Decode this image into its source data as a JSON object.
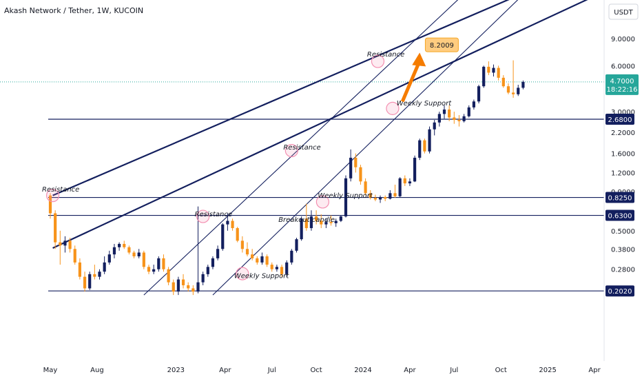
{
  "header": {
    "title": "Akash Network / Tether, 1W, KUCOIN",
    "currency": "USDT"
  },
  "price_badge": {
    "price": "4.7000",
    "countdown": "18:22:16",
    "color": "#26a69a"
  },
  "target_badge": {
    "label": "8.2009",
    "color": "#ffcc80"
  },
  "colors": {
    "up": "#131f5e",
    "down": "#f7931a",
    "channel": "#131f5e",
    "arrow": "#f57c00",
    "circle": "#f48fb1"
  },
  "chart_data": {
    "type": "candlestick",
    "title": "Akash Network / Tether, 1W, KUCOIN",
    "y_scale": "log",
    "y_ticks": [
      "9.0000",
      "6.0000",
      "3.0000",
      "2.2000",
      "1.6000",
      "1.2000",
      "0.9000",
      "0.5000",
      "0.3800",
      "0.2800"
    ],
    "x_ticks": [
      "May",
      "Aug",
      "2023",
      "Apr",
      "Jul",
      "Oct",
      "2024",
      "Apr",
      "Jul",
      "Oct",
      "2025",
      "Apr"
    ],
    "levels": [
      {
        "label": "2.6800",
        "value": 2.68
      },
      {
        "label": "0.8250",
        "value": 0.825
      },
      {
        "label": "0.6300",
        "value": 0.63
      },
      {
        "label": "0.2020",
        "value": 0.202
      }
    ],
    "annotations": [
      {
        "text": "Resistance",
        "week": 0,
        "value": 0.9
      },
      {
        "text": "Resistance",
        "week": 31,
        "value": 0.62
      },
      {
        "text": "Weekly Support",
        "week": 39,
        "value": 0.245
      },
      {
        "text": "Resistance",
        "week": 49,
        "value": 1.7
      },
      {
        "text": "Breakout candle",
        "week": 48,
        "value": 0.57
      },
      {
        "text": "Weekly Support",
        "week": 56,
        "value": 0.82
      },
      {
        "text": "Resistance",
        "week": 66,
        "value": 6.9
      },
      {
        "text": "Weekly Support",
        "week": 72,
        "value": 3.3
      }
    ],
    "circles": [
      {
        "week": 0.5,
        "value": 0.85
      },
      {
        "week": 31,
        "value": 0.62
      },
      {
        "week": 39,
        "value": 0.262
      },
      {
        "week": 49,
        "value": 1.67
      },
      {
        "week": 55.3,
        "value": 0.772
      },
      {
        "week": 66.5,
        "value": 6.4
      },
      {
        "week": 69.5,
        "value": 3.15
      }
    ],
    "target": {
      "value": 8.2009,
      "week": 75
    },
    "candles": [
      {
        "o": 0.85,
        "h": 0.88,
        "l": 0.6,
        "c": 0.65
      },
      {
        "o": 0.65,
        "h": 0.68,
        "l": 0.38,
        "c": 0.42
      },
      {
        "o": 0.42,
        "h": 0.5,
        "l": 0.3,
        "c": 0.4
      },
      {
        "o": 0.4,
        "h": 0.46,
        "l": 0.36,
        "c": 0.43
      },
      {
        "o": 0.43,
        "h": 0.45,
        "l": 0.36,
        "c": 0.38
      },
      {
        "o": 0.38,
        "h": 0.4,
        "l": 0.3,
        "c": 0.31
      },
      {
        "o": 0.31,
        "h": 0.33,
        "l": 0.24,
        "c": 0.25
      },
      {
        "o": 0.25,
        "h": 0.27,
        "l": 0.2,
        "c": 0.21
      },
      {
        "o": 0.21,
        "h": 0.27,
        "l": 0.205,
        "c": 0.26
      },
      {
        "o": 0.26,
        "h": 0.3,
        "l": 0.24,
        "c": 0.25
      },
      {
        "o": 0.25,
        "h": 0.28,
        "l": 0.24,
        "c": 0.27
      },
      {
        "o": 0.27,
        "h": 0.34,
        "l": 0.26,
        "c": 0.31
      },
      {
        "o": 0.31,
        "h": 0.37,
        "l": 0.3,
        "c": 0.35
      },
      {
        "o": 0.35,
        "h": 0.41,
        "l": 0.33,
        "c": 0.39
      },
      {
        "o": 0.39,
        "h": 0.42,
        "l": 0.37,
        "c": 0.41
      },
      {
        "o": 0.41,
        "h": 0.43,
        "l": 0.38,
        "c": 0.39
      },
      {
        "o": 0.39,
        "h": 0.4,
        "l": 0.35,
        "c": 0.36
      },
      {
        "o": 0.36,
        "h": 0.37,
        "l": 0.33,
        "c": 0.34
      },
      {
        "o": 0.34,
        "h": 0.38,
        "l": 0.33,
        "c": 0.36
      },
      {
        "o": 0.36,
        "h": 0.37,
        "l": 0.28,
        "c": 0.29
      },
      {
        "o": 0.29,
        "h": 0.3,
        "l": 0.26,
        "c": 0.27
      },
      {
        "o": 0.27,
        "h": 0.3,
        "l": 0.26,
        "c": 0.28
      },
      {
        "o": 0.28,
        "h": 0.34,
        "l": 0.27,
        "c": 0.33
      },
      {
        "o": 0.33,
        "h": 0.35,
        "l": 0.27,
        "c": 0.28
      },
      {
        "o": 0.28,
        "h": 0.29,
        "l": 0.22,
        "c": 0.23
      },
      {
        "o": 0.23,
        "h": 0.24,
        "l": 0.19,
        "c": 0.2
      },
      {
        "o": 0.2,
        "h": 0.25,
        "l": 0.19,
        "c": 0.24
      },
      {
        "o": 0.24,
        "h": 0.26,
        "l": 0.21,
        "c": 0.22
      },
      {
        "o": 0.22,
        "h": 0.23,
        "l": 0.2,
        "c": 0.21
      },
      {
        "o": 0.21,
        "h": 0.22,
        "l": 0.19,
        "c": 0.2
      },
      {
        "o": 0.2,
        "h": 0.72,
        "l": 0.195,
        "c": 0.23
      },
      {
        "o": 0.23,
        "h": 0.27,
        "l": 0.22,
        "c": 0.26
      },
      {
        "o": 0.26,
        "h": 0.3,
        "l": 0.25,
        "c": 0.29
      },
      {
        "o": 0.29,
        "h": 0.34,
        "l": 0.28,
        "c": 0.33
      },
      {
        "o": 0.33,
        "h": 0.4,
        "l": 0.32,
        "c": 0.38
      },
      {
        "o": 0.38,
        "h": 0.56,
        "l": 0.37,
        "c": 0.55
      },
      {
        "o": 0.55,
        "h": 0.65,
        "l": 0.5,
        "c": 0.58
      },
      {
        "o": 0.58,
        "h": 0.6,
        "l": 0.5,
        "c": 0.52
      },
      {
        "o": 0.52,
        "h": 0.53,
        "l": 0.42,
        "c": 0.43
      },
      {
        "o": 0.43,
        "h": 0.46,
        "l": 0.36,
        "c": 0.38
      },
      {
        "o": 0.38,
        "h": 0.42,
        "l": 0.34,
        "c": 0.35
      },
      {
        "o": 0.35,
        "h": 0.38,
        "l": 0.32,
        "c": 0.33
      },
      {
        "o": 0.33,
        "h": 0.34,
        "l": 0.3,
        "c": 0.31
      },
      {
        "o": 0.31,
        "h": 0.36,
        "l": 0.3,
        "c": 0.34
      },
      {
        "o": 0.34,
        "h": 0.35,
        "l": 0.29,
        "c": 0.3
      },
      {
        "o": 0.3,
        "h": 0.31,
        "l": 0.27,
        "c": 0.28
      },
      {
        "o": 0.28,
        "h": 0.3,
        "l": 0.27,
        "c": 0.29
      },
      {
        "o": 0.29,
        "h": 0.3,
        "l": 0.25,
        "c": 0.26
      },
      {
        "o": 0.26,
        "h": 0.32,
        "l": 0.25,
        "c": 0.31
      },
      {
        "o": 0.31,
        "h": 0.38,
        "l": 0.3,
        "c": 0.37
      },
      {
        "o": 0.37,
        "h": 0.45,
        "l": 0.36,
        "c": 0.44
      },
      {
        "o": 0.44,
        "h": 0.62,
        "l": 0.43,
        "c": 0.6
      },
      {
        "o": 0.6,
        "h": 0.75,
        "l": 0.5,
        "c": 0.52
      },
      {
        "o": 0.52,
        "h": 0.68,
        "l": 0.5,
        "c": 0.62
      },
      {
        "o": 0.62,
        "h": 0.68,
        "l": 0.55,
        "c": 0.58
      },
      {
        "o": 0.58,
        "h": 0.64,
        "l": 0.52,
        "c": 0.55
      },
      {
        "o": 0.55,
        "h": 0.6,
        "l": 0.52,
        "c": 0.57
      },
      {
        "o": 0.57,
        "h": 0.63,
        "l": 0.54,
        "c": 0.56
      },
      {
        "o": 0.56,
        "h": 0.6,
        "l": 0.53,
        "c": 0.58
      },
      {
        "o": 0.58,
        "h": 0.63,
        "l": 0.57,
        "c": 0.62
      },
      {
        "o": 0.62,
        "h": 1.15,
        "l": 0.61,
        "c": 1.1
      },
      {
        "o": 1.1,
        "h": 1.7,
        "l": 1.05,
        "c": 1.5
      },
      {
        "o": 1.5,
        "h": 1.6,
        "l": 1.2,
        "c": 1.3
      },
      {
        "o": 1.3,
        "h": 1.35,
        "l": 1.0,
        "c": 1.05
      },
      {
        "o": 1.05,
        "h": 1.1,
        "l": 0.85,
        "c": 0.88
      },
      {
        "o": 0.88,
        "h": 0.92,
        "l": 0.8,
        "c": 0.82
      },
      {
        "o": 0.82,
        "h": 0.86,
        "l": 0.78,
        "c": 0.8
      },
      {
        "o": 0.8,
        "h": 0.85,
        "l": 0.76,
        "c": 0.83
      },
      {
        "o": 0.83,
        "h": 0.85,
        "l": 0.78,
        "c": 0.81
      },
      {
        "o": 0.81,
        "h": 0.92,
        "l": 0.8,
        "c": 0.88
      },
      {
        "o": 0.88,
        "h": 1.0,
        "l": 0.82,
        "c": 0.84
      },
      {
        "o": 0.84,
        "h": 1.12,
        "l": 0.83,
        "c": 1.1
      },
      {
        "o": 1.1,
        "h": 1.15,
        "l": 0.98,
        "c": 1.02
      },
      {
        "o": 1.02,
        "h": 1.1,
        "l": 0.98,
        "c": 1.05
      },
      {
        "o": 1.05,
        "h": 1.55,
        "l": 1.04,
        "c": 1.5
      },
      {
        "o": 1.5,
        "h": 2.0,
        "l": 1.45,
        "c": 1.95
      },
      {
        "o": 1.95,
        "h": 2.0,
        "l": 1.6,
        "c": 1.65
      },
      {
        "o": 1.65,
        "h": 2.4,
        "l": 1.6,
        "c": 2.3
      },
      {
        "o": 2.3,
        "h": 2.65,
        "l": 2.1,
        "c": 2.55
      },
      {
        "o": 2.55,
        "h": 3.0,
        "l": 2.4,
        "c": 2.9
      },
      {
        "o": 2.9,
        "h": 3.3,
        "l": 2.7,
        "c": 3.1
      },
      {
        "o": 3.1,
        "h": 3.3,
        "l": 2.6,
        "c": 2.75
      },
      {
        "o": 2.75,
        "h": 3.0,
        "l": 2.5,
        "c": 2.65
      },
      {
        "o": 2.65,
        "h": 2.85,
        "l": 2.4,
        "c": 2.6
      },
      {
        "o": 2.6,
        "h": 2.9,
        "l": 2.55,
        "c": 2.8
      },
      {
        "o": 2.8,
        "h": 3.3,
        "l": 2.75,
        "c": 3.2
      },
      {
        "o": 3.2,
        "h": 3.6,
        "l": 3.1,
        "c": 3.5
      },
      {
        "o": 3.5,
        "h": 4.5,
        "l": 3.4,
        "c": 4.4
      },
      {
        "o": 4.4,
        "h": 6.0,
        "l": 4.3,
        "c": 5.9
      },
      {
        "o": 5.9,
        "h": 6.4,
        "l": 5.2,
        "c": 5.4
      },
      {
        "o": 5.4,
        "h": 6.1,
        "l": 5.1,
        "c": 5.8
      },
      {
        "o": 5.8,
        "h": 6.0,
        "l": 4.8,
        "c": 5.0
      },
      {
        "o": 5.0,
        "h": 5.2,
        "l": 4.3,
        "c": 4.4
      },
      {
        "o": 4.4,
        "h": 4.6,
        "l": 3.9,
        "c": 4.0
      },
      {
        "o": 4.0,
        "h": 6.5,
        "l": 3.7,
        "c": 3.9
      },
      {
        "o": 3.9,
        "h": 4.5,
        "l": 3.8,
        "c": 4.3
      },
      {
        "o": 4.3,
        "h": 4.8,
        "l": 4.2,
        "c": 4.7
      }
    ]
  }
}
